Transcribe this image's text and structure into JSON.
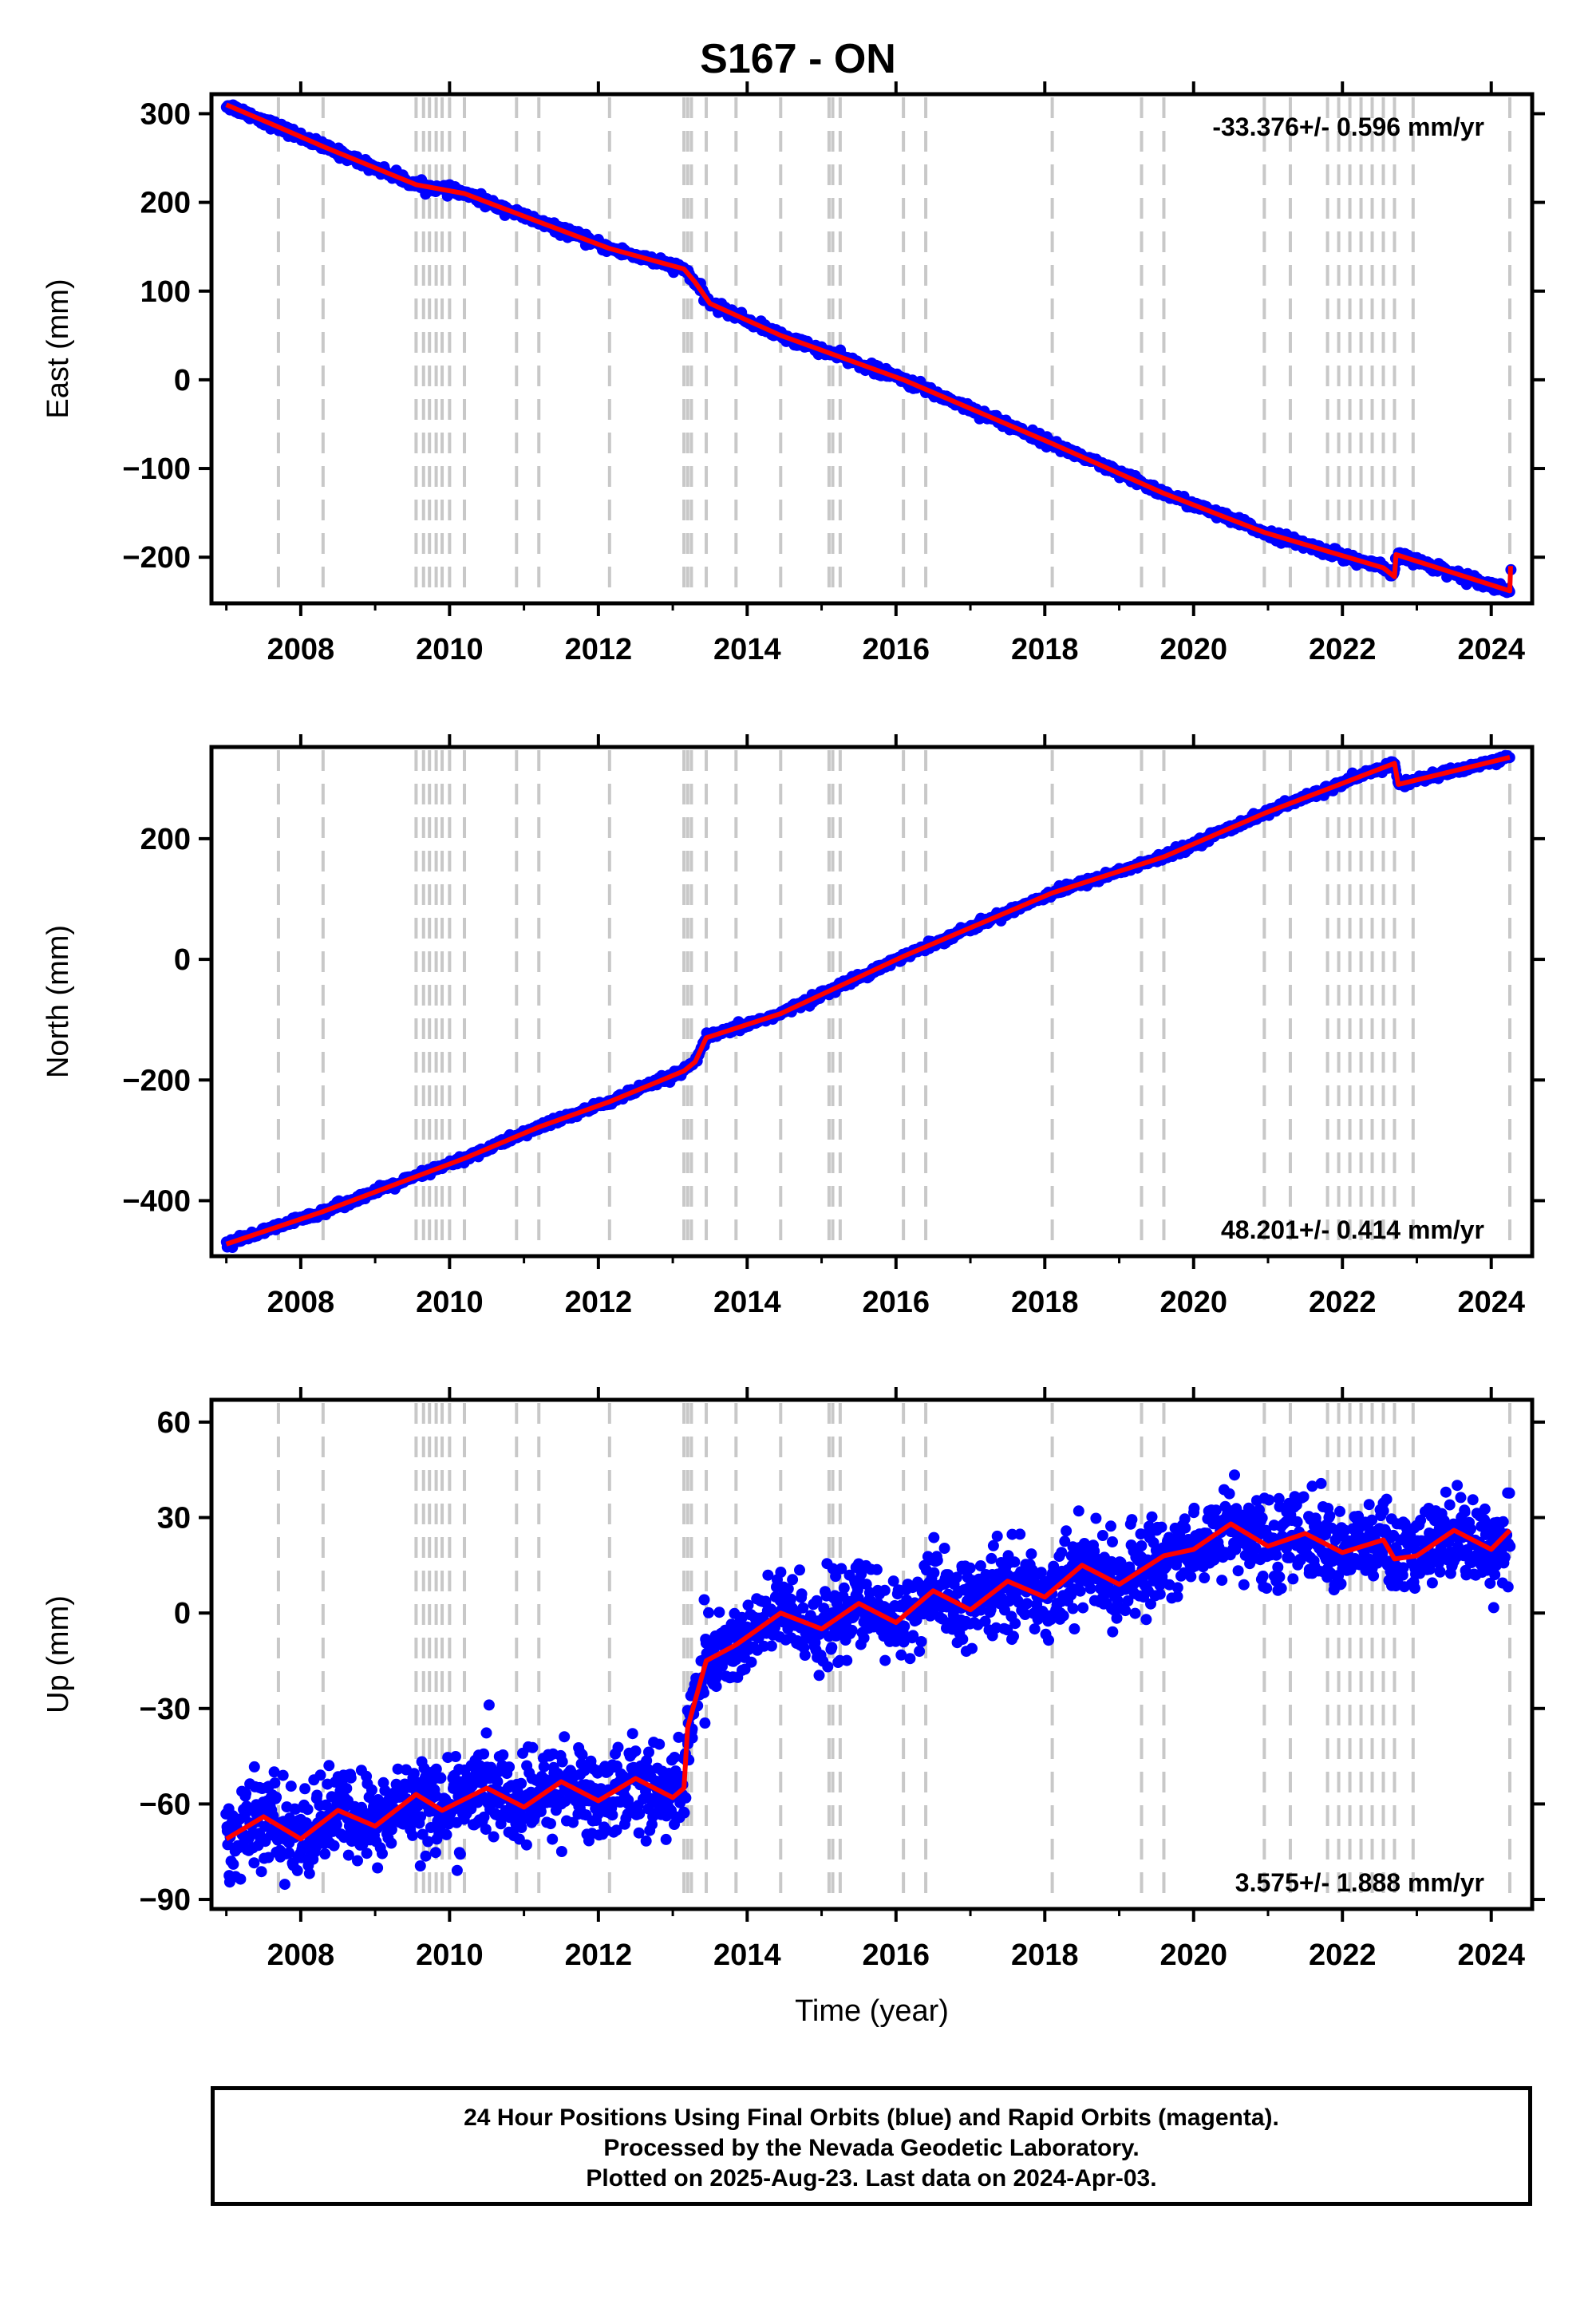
{
  "title": "S167 - ON",
  "footer": {
    "line1": "24 Hour Positions Using Final Orbits (blue) and Rapid Orbits (magenta).",
    "line2": "Processed by the Nevada Geodetic Laboratory.",
    "line3": "Plotted on 2025-Aug-23. Last data on 2024-Apr-03."
  },
  "colors": {
    "data": "#0000ff",
    "model": "#ff0000",
    "event_lines": "#c8c8c8",
    "frame": "#000000"
  },
  "chart_data": [
    {
      "type": "scatter",
      "ylabel": "East (mm)",
      "xlabel": "",
      "xlim": [
        2006.8,
        2024.55
      ],
      "ylim": [
        -252,
        322
      ],
      "x_ticks": [
        2008,
        2010,
        2012,
        2014,
        2016,
        2018,
        2020,
        2022,
        2024
      ],
      "y_ticks": [
        -200,
        -100,
        0,
        100,
        200,
        300
      ],
      "rate_text": "-33.376+/- 0.596 mm/yr",
      "rate_position": "top-right",
      "grid": false,
      "event_lines": [
        2007.7,
        2008.3,
        2009.55,
        2009.65,
        2009.73,
        2009.82,
        2009.9,
        2010.0,
        2010.2,
        2010.9,
        2011.2,
        2012.15,
        2013.15,
        2013.2,
        2013.25,
        2013.45,
        2013.85,
        2014.45,
        2015.1,
        2015.15,
        2015.25,
        2016.1,
        2016.4,
        2018.1,
        2019.3,
        2019.6,
        2020.95,
        2021.3,
        2021.8,
        2021.95,
        2022.1,
        2022.25,
        2022.4,
        2022.55,
        2022.7,
        2022.95,
        2024.25
      ],
      "series": [
        {
          "name": "",
          "kind": "model",
          "points": [
            [
              2007.0,
              310
            ],
            [
              2007.7,
              285
            ],
            [
              2008.3,
              263
            ],
            [
              2009.55,
              220
            ],
            [
              2010.2,
              210
            ],
            [
              2011.2,
              178
            ],
            [
              2012.15,
              148
            ],
            [
              2013.15,
              125
            ],
            [
              2013.3,
              110
            ],
            [
              2013.5,
              86
            ],
            [
              2014.45,
              50
            ],
            [
              2016.1,
              0
            ],
            [
              2018.1,
              -72
            ],
            [
              2019.6,
              -128
            ],
            [
              2020.95,
              -172
            ],
            [
              2022.55,
              -212
            ],
            [
              2022.7,
              -222
            ],
            [
              2022.72,
              -197
            ],
            [
              2024.25,
              -238
            ],
            [
              2024.26,
              -210
            ]
          ]
        }
      ]
    },
    {
      "type": "scatter",
      "ylabel": "North (mm)",
      "xlabel": "",
      "xlim": [
        2006.8,
        2024.55
      ],
      "ylim": [
        -492,
        352
      ],
      "x_ticks": [
        2008,
        2010,
        2012,
        2014,
        2016,
        2018,
        2020,
        2022,
        2024
      ],
      "y_ticks": [
        -400,
        -200,
        0,
        200
      ],
      "rate_text": "48.201+/- 0.414 mm/yr",
      "rate_position": "bottom-right",
      "grid": false,
      "event_lines": [
        2007.7,
        2008.3,
        2009.55,
        2009.65,
        2009.73,
        2009.82,
        2009.9,
        2010.0,
        2010.2,
        2010.9,
        2011.2,
        2012.15,
        2013.15,
        2013.2,
        2013.25,
        2013.45,
        2013.85,
        2014.45,
        2015.1,
        2015.15,
        2015.25,
        2016.1,
        2016.4,
        2018.1,
        2019.3,
        2019.6,
        2020.95,
        2021.3,
        2021.8,
        2021.95,
        2022.1,
        2022.25,
        2022.4,
        2022.55,
        2022.7,
        2022.95,
        2024.25
      ],
      "series": [
        {
          "name": "",
          "kind": "model",
          "points": [
            [
              2007.0,
              -472
            ],
            [
              2008.3,
              -418
            ],
            [
              2010.2,
              -330
            ],
            [
              2011.2,
              -278
            ],
            [
              2012.15,
              -236
            ],
            [
              2013.15,
              -185
            ],
            [
              2013.3,
              -170
            ],
            [
              2013.45,
              -130
            ],
            [
              2014.45,
              -90
            ],
            [
              2016.1,
              5
            ],
            [
              2018.1,
              110
            ],
            [
              2019.6,
              170
            ],
            [
              2020.95,
              242
            ],
            [
              2022.7,
              325
            ],
            [
              2022.75,
              290
            ],
            [
              2024.25,
              335
            ]
          ]
        }
      ]
    },
    {
      "type": "scatter",
      "ylabel": "Up (mm)",
      "xlabel": "Time (year)",
      "xlim": [
        2006.8,
        2024.55
      ],
      "ylim": [
        -93,
        67
      ],
      "x_ticks": [
        2008,
        2010,
        2012,
        2014,
        2016,
        2018,
        2020,
        2022,
        2024
      ],
      "y_ticks": [
        -90,
        -60,
        -30,
        0,
        30,
        60
      ],
      "rate_text": "3.575+/- 1.888 mm/yr",
      "rate_position": "bottom-right",
      "grid": false,
      "event_lines": [
        2007.7,
        2008.3,
        2009.55,
        2009.65,
        2009.73,
        2009.82,
        2009.9,
        2010.0,
        2010.2,
        2010.9,
        2011.2,
        2012.15,
        2013.15,
        2013.2,
        2013.25,
        2013.45,
        2013.85,
        2014.45,
        2015.1,
        2015.15,
        2015.25,
        2016.1,
        2016.4,
        2018.1,
        2019.3,
        2019.6,
        2020.95,
        2021.3,
        2021.8,
        2021.95,
        2022.1,
        2022.25,
        2022.4,
        2022.55,
        2022.7,
        2022.95,
        2024.25
      ],
      "series": [
        {
          "name": "",
          "kind": "model",
          "points": [
            [
              2007.0,
              -71
            ],
            [
              2007.5,
              -64
            ],
            [
              2008.0,
              -71
            ],
            [
              2008.5,
              -62
            ],
            [
              2009.0,
              -67
            ],
            [
              2009.55,
              -57
            ],
            [
              2009.9,
              -62
            ],
            [
              2010.5,
              -55
            ],
            [
              2011.0,
              -61
            ],
            [
              2011.5,
              -53
            ],
            [
              2012.0,
              -59
            ],
            [
              2012.5,
              -52
            ],
            [
              2013.0,
              -58
            ],
            [
              2013.15,
              -55
            ],
            [
              2013.2,
              -36
            ],
            [
              2013.45,
              -15
            ],
            [
              2013.85,
              -10
            ],
            [
              2014.45,
              0
            ],
            [
              2015.0,
              -5
            ],
            [
              2015.5,
              3
            ],
            [
              2016.0,
              -3
            ],
            [
              2016.5,
              7
            ],
            [
              2017.0,
              1
            ],
            [
              2017.5,
              10
            ],
            [
              2018.0,
              5
            ],
            [
              2018.5,
              15
            ],
            [
              2019.0,
              9
            ],
            [
              2019.6,
              18
            ],
            [
              2020.0,
              20
            ],
            [
              2020.5,
              28
            ],
            [
              2021.0,
              21
            ],
            [
              2021.5,
              25
            ],
            [
              2022.0,
              19
            ],
            [
              2022.55,
              23
            ],
            [
              2022.7,
              17
            ],
            [
              2023.0,
              18
            ],
            [
              2023.5,
              26
            ],
            [
              2024.0,
              20
            ],
            [
              2024.25,
              26
            ]
          ]
        }
      ]
    }
  ]
}
